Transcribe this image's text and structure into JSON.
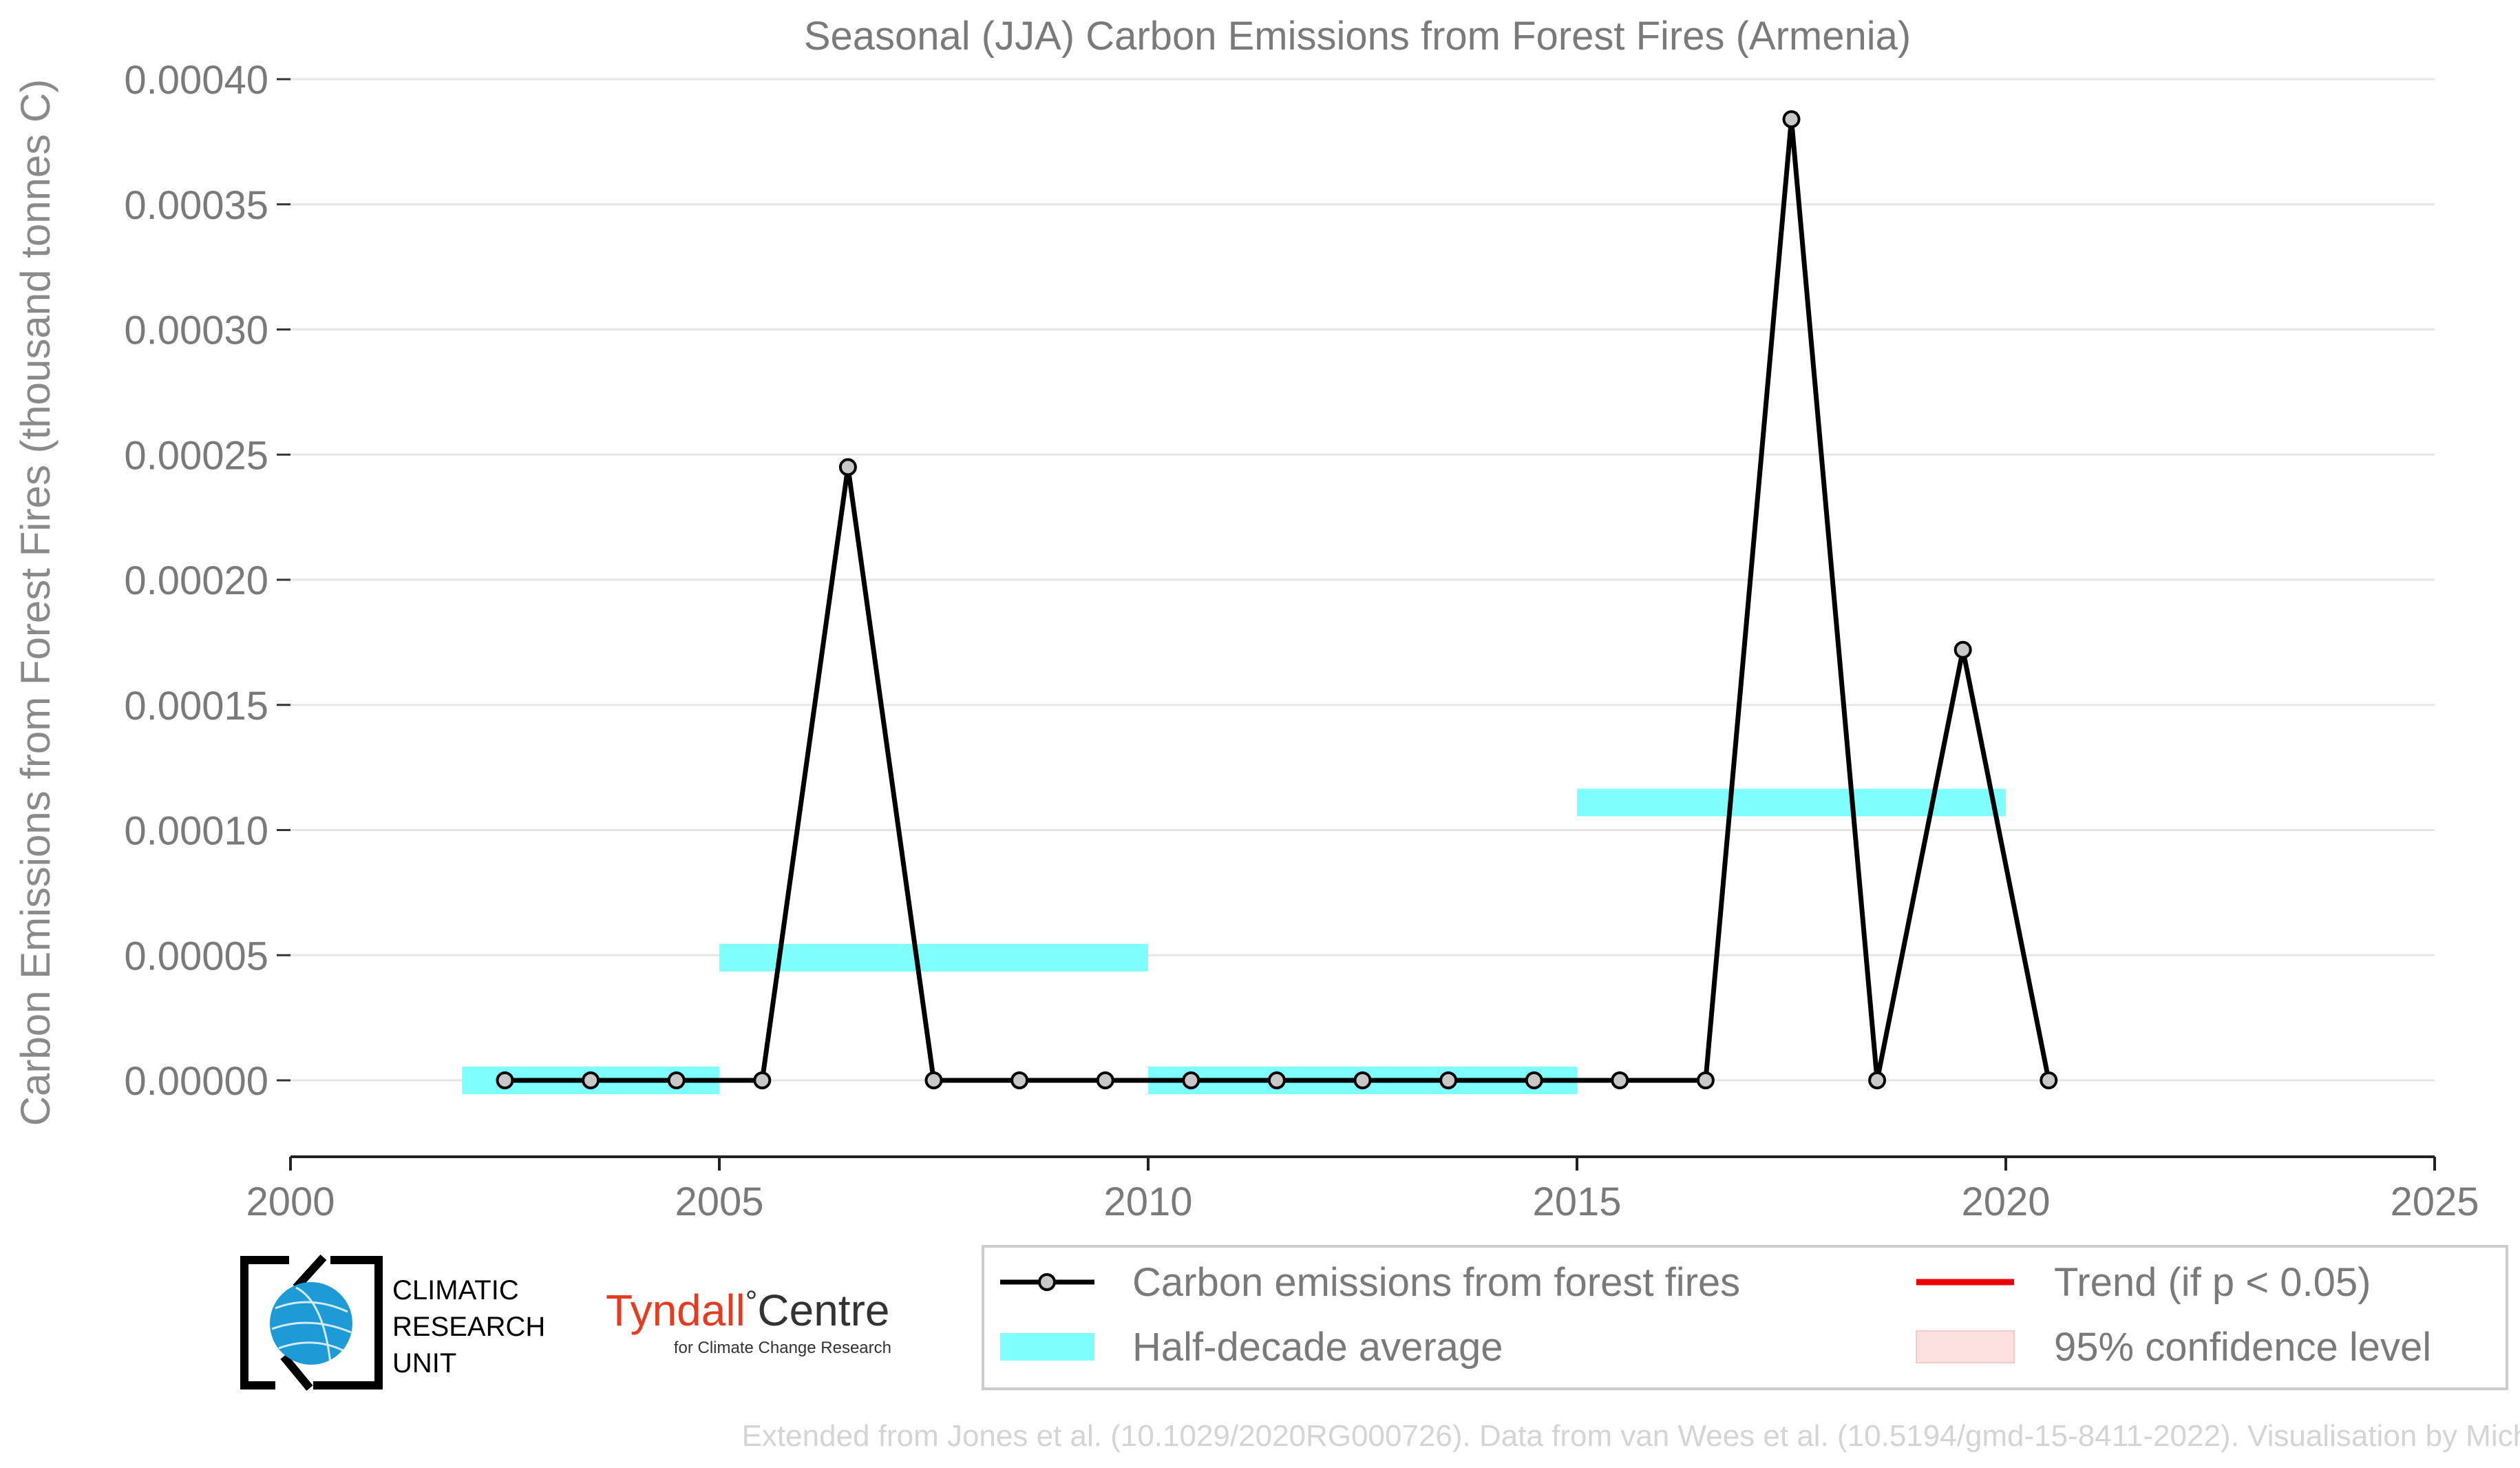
{
  "chart_data": {
    "type": "line",
    "title": "Seasonal (JJA) Carbon Emissions from Forest Fires (Armenia)",
    "xlabel": "",
    "ylabel": "Carbon Emissions from Forest Fires (thousand tonnes C)",
    "xlim": [
      2000,
      2025
    ],
    "ylim": [
      -3e-05,
      0.0004
    ],
    "x_ticks": [
      "2000",
      "2005",
      "2010",
      "2015",
      "2020",
      "2025"
    ],
    "y_ticks": [
      "0.00000",
      "0.00005",
      "0.00010",
      "0.00015",
      "0.00020",
      "0.00025",
      "0.00030",
      "0.00035",
      "0.00040"
    ],
    "grid": true,
    "series": [
      {
        "name": "Carbon emissions from forest fires",
        "color": "#000000",
        "x": [
          2002.5,
          2003.5,
          2004.5,
          2005.5,
          2006.5,
          2007.5,
          2008.5,
          2009.5,
          2010.5,
          2011.5,
          2012.5,
          2013.5,
          2014.5,
          2015.5,
          2016.5,
          2017.5,
          2018.5,
          2019.5,
          2020.5
        ],
        "values": [
          0,
          0,
          0,
          0,
          0.000245,
          0,
          0,
          0,
          0,
          0,
          0,
          0,
          0,
          0,
          0,
          0.000384,
          0,
          0.000172,
          0
        ]
      }
    ],
    "half_decade_average": {
      "name": "Half-decade average",
      "color": "#00ffff",
      "segments": [
        {
          "x0": 2002,
          "x1": 2005,
          "value": 0
        },
        {
          "x0": 2005,
          "x1": 2010,
          "value": 4.9e-05
        },
        {
          "x0": 2010,
          "x1": 2015,
          "value": 0
        },
        {
          "x0": 2015,
          "x1": 2020,
          "value": 0.000111
        }
      ]
    },
    "legend": {
      "placement": "bottom-right",
      "items": [
        {
          "label": "Carbon emissions from forest fires",
          "kind": "line-marker",
          "color": "#000000"
        },
        {
          "label": "Trend (if p < 0.05)",
          "kind": "line",
          "color": "#ee0000"
        },
        {
          "label": "Half-decade average",
          "kind": "band",
          "color": "#00ffff"
        },
        {
          "label": "95% confidence level",
          "kind": "band",
          "color": "#f4a4a4"
        }
      ]
    }
  },
  "logos": {
    "cru_line1": "CLIMATIC",
    "cru_line2": "RESEARCH",
    "cru_line3": "UNIT",
    "tyndall_word": "Tyndall",
    "tyndall_degree": "°",
    "tyndall_centre": "Centre",
    "tyndall_sub": "for Climate Change Research"
  },
  "footer": "Extended from Jones et al. (10.1029/2020RG000726). Data from van Wees et al. (10.5194/gmd-15-8411-2022). Visualisation by Michael Taylor."
}
